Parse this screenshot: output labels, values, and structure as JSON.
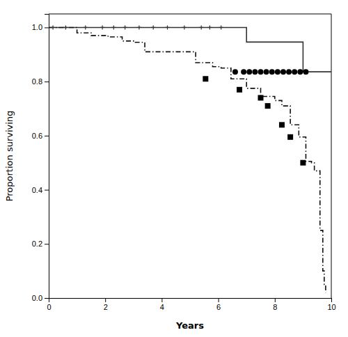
{
  "chart_data": {
    "type": "line",
    "xlabel": "Years",
    "ylabel": "Proportion surviving",
    "xlim": [
      0,
      10
    ],
    "ylim": [
      0.0,
      1.05
    ],
    "xticks": [
      0,
      2,
      4,
      6,
      8,
      10
    ],
    "yticks": [
      {
        "value": 0.0,
        "label": "0.0"
      },
      0.2,
      0.4,
      0.6,
      0.8,
      {
        "value": 1.0,
        "label": "1.0"
      }
    ],
    "series": [
      {
        "type": "step",
        "color": "#333333",
        "line_style": "solid",
        "x": [
          0,
          0.5,
          0.7,
          1.0,
          1.5,
          2.0,
          2.5,
          3.0,
          3.5,
          4.0,
          4.5,
          5.0,
          5.5,
          6.5,
          7.0,
          8.5,
          9.0,
          10.0
        ],
        "values": [
          1.0,
          1.0,
          1.0,
          1.0,
          1.0,
          1.0,
          1.0,
          1.0,
          1.0,
          1.0,
          1.0,
          1.0,
          1.0,
          1.0,
          0.946,
          0.946,
          0.836,
          0.836
        ]
      },
      {
        "type": "scatter",
        "color": "#333333",
        "marker": "plus",
        "x": [
          0.15,
          0.6,
          1.3,
          1.9,
          2.3,
          2.7,
          3.2,
          3.7,
          4.2,
          4.8,
          5.4,
          5.7,
          6.1
        ],
        "values": [
          1.0,
          1.0,
          1.0,
          1.0,
          1.0,
          1.0,
          1.0,
          1.0,
          1.0,
          1.0,
          1.0,
          1.0,
          1.0
        ]
      },
      {
        "type": "scatter",
        "color": "#000000",
        "marker": "circle",
        "x": [
          6.6,
          6.9,
          7.1,
          7.3,
          7.5,
          7.7,
          7.9,
          8.1,
          8.3,
          8.5,
          8.7,
          8.9,
          9.1
        ],
        "values": [
          0.836,
          0.836,
          0.836,
          0.836,
          0.836,
          0.836,
          0.836,
          0.836,
          0.836,
          0.836,
          0.836,
          0.836,
          0.836
        ]
      },
      {
        "type": "step",
        "color": "#111111",
        "line_style": "dashdot",
        "x": [
          0,
          1.0,
          1.5,
          2.1,
          2.6,
          3.0,
          3.4,
          3.7,
          4.0,
          4.4,
          4.8,
          5.2,
          5.55,
          5.8,
          6.1,
          6.45,
          6.75,
          7.0,
          7.25,
          7.5,
          7.75,
          8.0,
          8.25,
          8.4,
          8.55,
          8.7,
          8.85,
          9.0,
          9.1,
          9.2,
          9.3,
          9.4,
          9.5,
          9.6,
          9.65,
          9.7,
          9.75,
          9.8
        ],
        "values": [
          1.0,
          0.98,
          0.97,
          0.965,
          0.95,
          0.945,
          0.91,
          0.91,
          0.91,
          0.91,
          0.91,
          0.87,
          0.87,
          0.855,
          0.85,
          0.81,
          0.81,
          0.775,
          0.775,
          0.745,
          0.745,
          0.73,
          0.71,
          0.71,
          0.64,
          0.64,
          0.595,
          0.595,
          0.505,
          0.505,
          0.5,
          0.47,
          0.47,
          0.25,
          0.25,
          0.1,
          0.05,
          0.02
        ]
      },
      {
        "type": "scatter",
        "color": "#000000",
        "marker": "square",
        "x": [
          5.55,
          6.75,
          7.5,
          7.75,
          8.25,
          8.55,
          9.0
        ],
        "values": [
          0.81,
          0.77,
          0.74,
          0.71,
          0.64,
          0.595,
          0.5
        ]
      }
    ]
  }
}
